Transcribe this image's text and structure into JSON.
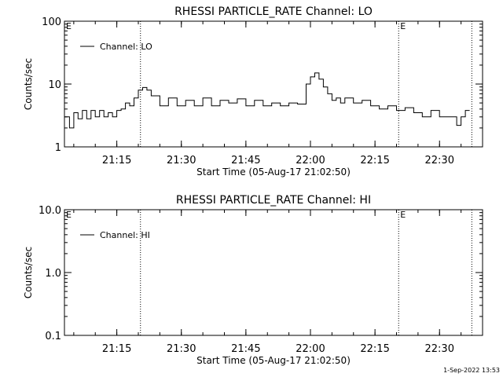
{
  "footer": {
    "timestamp": "1-Sep-2022 13:53"
  },
  "chart_data": [
    {
      "type": "line",
      "title": "RHESSI PARTICLE_RATE Channel: LO",
      "xlabel": "Start Time (05-Aug-17 21:02:50)",
      "ylabel": "Counts/sec",
      "y_scale": "log",
      "ylim": [
        1,
        100
      ],
      "y_ticks": [
        "1",
        "10",
        "100"
      ],
      "x_ticks": [
        "21:15",
        "21:30",
        "21:45",
        "22:00",
        "22:15",
        "22:30"
      ],
      "xlim": [
        "21:02:50",
        "22:40:00"
      ],
      "legend": {
        "position": "top-left",
        "entries": [
          "Channel: LO"
        ]
      },
      "vlines": [
        "21:20:30",
        "22:20:30",
        "22:37:30"
      ],
      "markers": [
        {
          "label": "E",
          "x": "21:02:50"
        },
        {
          "label": "E",
          "x": "22:20:30"
        }
      ],
      "series": [
        {
          "name": "Channel: LO",
          "x": [
            "21:02:50",
            "21:04:00",
            "21:05:00",
            "21:06:00",
            "21:07:00",
            "21:08:00",
            "21:09:00",
            "21:10:00",
            "21:11:00",
            "21:12:00",
            "21:13:00",
            "21:14:00",
            "21:15:00",
            "21:16:00",
            "21:17:00",
            "21:18:00",
            "21:19:00",
            "21:20:00",
            "21:21:00",
            "21:22:00",
            "21:23:00",
            "21:25:00",
            "21:27:00",
            "21:29:00",
            "21:31:00",
            "21:33:00",
            "21:35:00",
            "21:37:00",
            "21:39:00",
            "21:41:00",
            "21:43:00",
            "21:45:00",
            "21:47:00",
            "21:49:00",
            "21:51:00",
            "21:53:00",
            "21:55:00",
            "21:57:00",
            "21:59:00",
            "22:00:00",
            "22:01:00",
            "22:02:00",
            "22:03:00",
            "22:04:00",
            "22:05:00",
            "22:06:00",
            "22:07:00",
            "22:08:00",
            "22:10:00",
            "22:12:00",
            "22:14:00",
            "22:16:00",
            "22:18:00",
            "22:20:00",
            "22:22:00",
            "22:24:00",
            "22:26:00",
            "22:28:00",
            "22:30:00",
            "22:32:00",
            "22:33:00",
            "22:34:00",
            "22:35:00",
            "22:36:00",
            "22:37:00"
          ],
          "values": [
            3.0,
            2.0,
            3.5,
            2.8,
            3.8,
            2.8,
            3.8,
            3.0,
            3.8,
            3.0,
            3.5,
            3.0,
            3.8,
            4.0,
            5.0,
            4.5,
            6.0,
            8.0,
            8.8,
            8.0,
            6.5,
            4.5,
            6.0,
            4.5,
            5.5,
            4.5,
            6.0,
            4.5,
            5.5,
            5.0,
            5.8,
            4.5,
            5.5,
            4.5,
            5.0,
            4.5,
            5.0,
            4.8,
            10.0,
            13.0,
            15.0,
            12.0,
            9.0,
            7.0,
            5.5,
            6.0,
            5.0,
            6.0,
            5.0,
            5.5,
            4.5,
            4.0,
            4.5,
            3.8,
            4.2,
            3.5,
            3.0,
            3.8,
            3.0,
            3.0,
            3.0,
            2.2,
            3.0,
            3.8,
            3.8
          ]
        }
      ]
    },
    {
      "type": "line",
      "title": "RHESSI PARTICLE_RATE Channel: HI",
      "xlabel": "Start Time (05-Aug-17 21:02:50)",
      "ylabel": "Counts/sec",
      "y_scale": "log",
      "ylim": [
        0.1,
        10
      ],
      "y_ticks": [
        "0.1",
        "1.0",
        "10.0"
      ],
      "x_ticks": [
        "21:15",
        "21:30",
        "21:45",
        "22:00",
        "22:15",
        "22:30"
      ],
      "xlim": [
        "21:02:50",
        "22:40:00"
      ],
      "legend": {
        "position": "top-left",
        "entries": [
          "Channel: HI"
        ]
      },
      "vlines": [
        "21:20:30",
        "22:20:30",
        "22:37:30"
      ],
      "markers": [
        {
          "label": "E",
          "x": "21:02:50"
        },
        {
          "label": "E",
          "x": "22:20:30"
        }
      ],
      "series": [
        {
          "name": "Channel: HI",
          "x": [],
          "values": []
        }
      ]
    }
  ]
}
